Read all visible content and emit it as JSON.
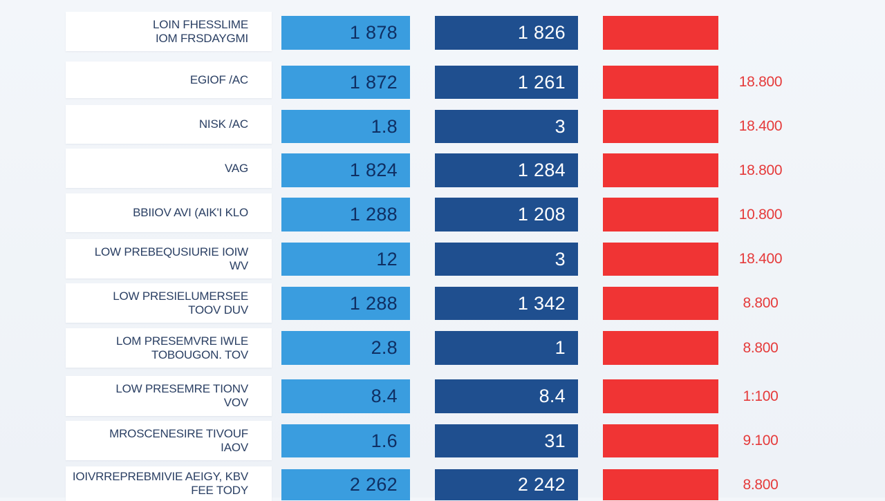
{
  "chart_data": {
    "type": "table",
    "title": "",
    "columns": [
      "label",
      "light_blue_value",
      "dark_blue_value",
      "red_value"
    ],
    "colors": {
      "light_blue": "#3a9ddf",
      "dark_blue": "#1f4f8f",
      "red": "#f03434",
      "red_text": "#e53a3a",
      "label_text": "#2a3f63"
    },
    "rows": [
      {
        "label_lines": [
          "LOIN FHESSLIME",
          "IOM FRSDAYGMI"
        ],
        "light_blue": "1 878",
        "dark_blue": "1 826",
        "red": ""
      },
      {
        "label_lines": [
          "EGIOF /AC"
        ],
        "light_blue": "1 872",
        "dark_blue": "1 261",
        "red": "18.800"
      },
      {
        "label_lines": [
          "NISK /AC"
        ],
        "light_blue": "1.8",
        "dark_blue": "3",
        "red": "18.400"
      },
      {
        "label_lines": [
          "VAG"
        ],
        "light_blue": "1 824",
        "dark_blue": "1 284",
        "red": "18.800"
      },
      {
        "label_lines": [
          "BBIIOV AVI (AIK'I KLO"
        ],
        "light_blue": "1 288",
        "dark_blue": "1 208",
        "red": "10.800"
      },
      {
        "label_lines": [
          "LOW PREBEQUSIURIE IOIW",
          "WV"
        ],
        "light_blue": "12",
        "dark_blue": "3",
        "red": "18.400"
      },
      {
        "label_lines": [
          "LOW PRESIELUMERSEE",
          "TOOV DUV"
        ],
        "light_blue": "1 288",
        "dark_blue": "1 342",
        "red": "8.800"
      },
      {
        "label_lines": [
          "LOM PRESEMVRE IWLE",
          "TOBOUGON. TOV"
        ],
        "light_blue": "2.8",
        "dark_blue": "1",
        "red": "8.800"
      },
      {
        "label_lines": [
          "LOW PRESEMRE TIONV",
          "VOV"
        ],
        "light_blue": "8.4",
        "dark_blue": "8.4",
        "red": "1:100"
      },
      {
        "label_lines": [
          "MROSCENESIRE TIVOUF",
          "IAOV"
        ],
        "light_blue": "1.6",
        "dark_blue": "31",
        "red": "9.100"
      },
      {
        "label_lines": [
          "IOIVRREPREBMIVIE AEIGY, KBV",
          "FEE TODY"
        ],
        "light_blue": "2 262",
        "dark_blue": "2 242",
        "red": "8.800"
      }
    ]
  }
}
